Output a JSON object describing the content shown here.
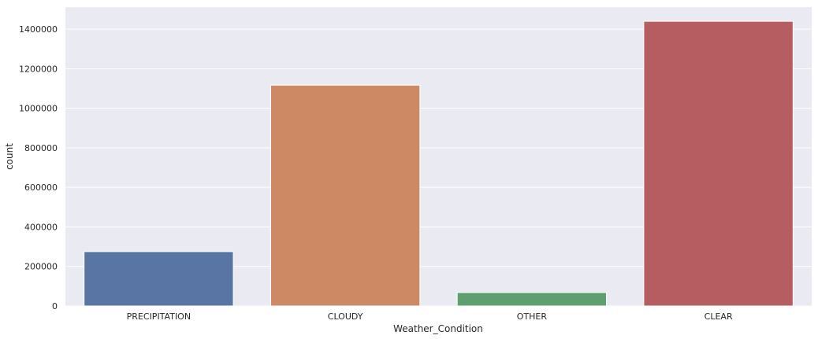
{
  "chart_data": {
    "type": "bar",
    "categories": [
      "PRECIPITATION",
      "CLOUDY",
      "OTHER",
      "CLEAR"
    ],
    "values": [
      275000,
      1117000,
      68000,
      1440000
    ],
    "colors": [
      "#5975a4",
      "#cc8963",
      "#5f9e6e",
      "#b55d60"
    ],
    "xlabel": "Weather_Condition",
    "ylabel": "count",
    "ylim": [
      0,
      1512000
    ],
    "yticks": [
      0,
      200000,
      400000,
      600000,
      800000,
      1000000,
      1200000,
      1400000
    ],
    "ytick_labels": [
      "0",
      "200000",
      "400000",
      "600000",
      "800000",
      "1000000",
      "1200000",
      "1400000"
    ],
    "grid": true,
    "background": "#eaeaf2"
  }
}
